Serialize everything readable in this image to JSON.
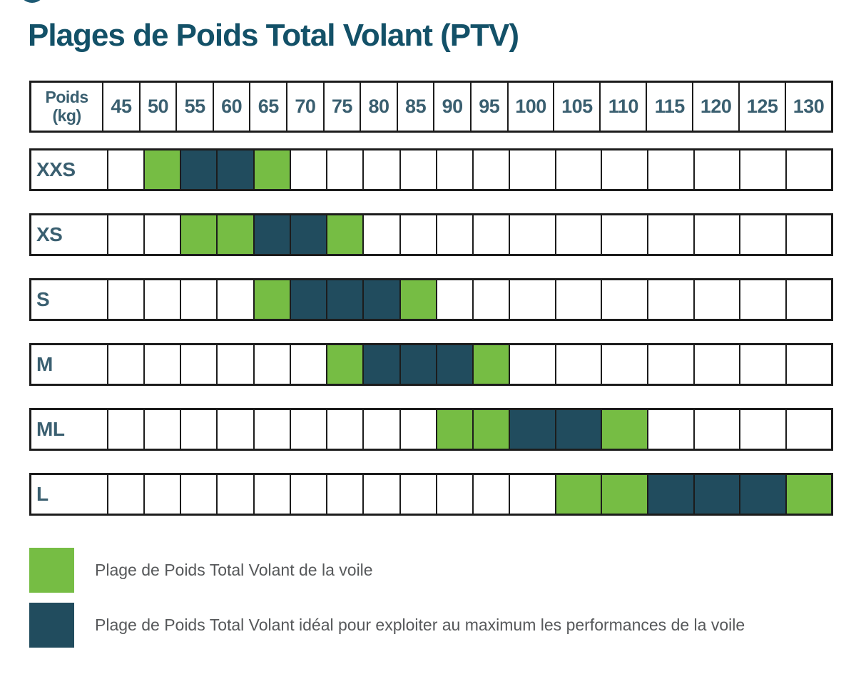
{
  "title": "Plages de Poids Total Volant (PTV)",
  "colors": {
    "green": "#76bd44",
    "dark_teal": "#214c5e",
    "title_text": "#135168",
    "table_text": "#3a5f70",
    "legend_text": "#56585a",
    "border": "#1c1c1c"
  },
  "table": {
    "corner_label_line1": "Poids",
    "corner_label_line2": "(kg)"
  },
  "chart_data": {
    "type": "heatmap",
    "title": "Plages de Poids Total Volant (PTV)",
    "x_axis_label": "Poids (kg)",
    "categories": [
      "45",
      "50",
      "55",
      "60",
      "65",
      "70",
      "75",
      "80",
      "85",
      "90",
      "95",
      "100",
      "105",
      "110",
      "115",
      "120",
      "125",
      "130"
    ],
    "cell_state_meaning": {
      "w": "vide",
      "g": "Plage de Poids Total Volant de la voile",
      "d": "Plage de Poids Total Volant idéal pour exploiter au maximum les performances de la voile"
    },
    "rows": [
      {
        "label": "XXS",
        "cells": [
          "w",
          "g",
          "d",
          "d",
          "g",
          "w",
          "w",
          "w",
          "w",
          "w",
          "w",
          "w",
          "w",
          "w",
          "w",
          "w",
          "w",
          "w"
        ]
      },
      {
        "label": "XS",
        "cells": [
          "w",
          "w",
          "g",
          "g",
          "d",
          "d",
          "g",
          "w",
          "w",
          "w",
          "w",
          "w",
          "w",
          "w",
          "w",
          "w",
          "w",
          "w"
        ]
      },
      {
        "label": "S",
        "cells": [
          "w",
          "w",
          "w",
          "w",
          "g",
          "d",
          "d",
          "d",
          "g",
          "w",
          "w",
          "w",
          "w",
          "w",
          "w",
          "w",
          "w",
          "w"
        ]
      },
      {
        "label": "M",
        "cells": [
          "w",
          "w",
          "w",
          "w",
          "w",
          "w",
          "g",
          "d",
          "d",
          "d",
          "g",
          "w",
          "w",
          "w",
          "w",
          "w",
          "w",
          "w"
        ]
      },
      {
        "label": "ML",
        "cells": [
          "w",
          "w",
          "w",
          "w",
          "w",
          "w",
          "w",
          "w",
          "w",
          "g",
          "g",
          "d",
          "d",
          "g",
          "w",
          "w",
          "w",
          "w"
        ]
      },
      {
        "label": "L",
        "cells": [
          "w",
          "w",
          "w",
          "w",
          "w",
          "w",
          "w",
          "w",
          "w",
          "w",
          "w",
          "w",
          "g",
          "g",
          "d",
          "d",
          "d",
          "g"
        ]
      }
    ],
    "legend_position": "bottom-left",
    "grid": true
  },
  "legend": {
    "items": [
      {
        "color": "#76bd44",
        "label": "Plage de Poids Total Volant de la voile"
      },
      {
        "color": "#214c5e",
        "label": "Plage de Poids Total Volant idéal pour exploiter au maximum les performances de la voile"
      }
    ]
  }
}
